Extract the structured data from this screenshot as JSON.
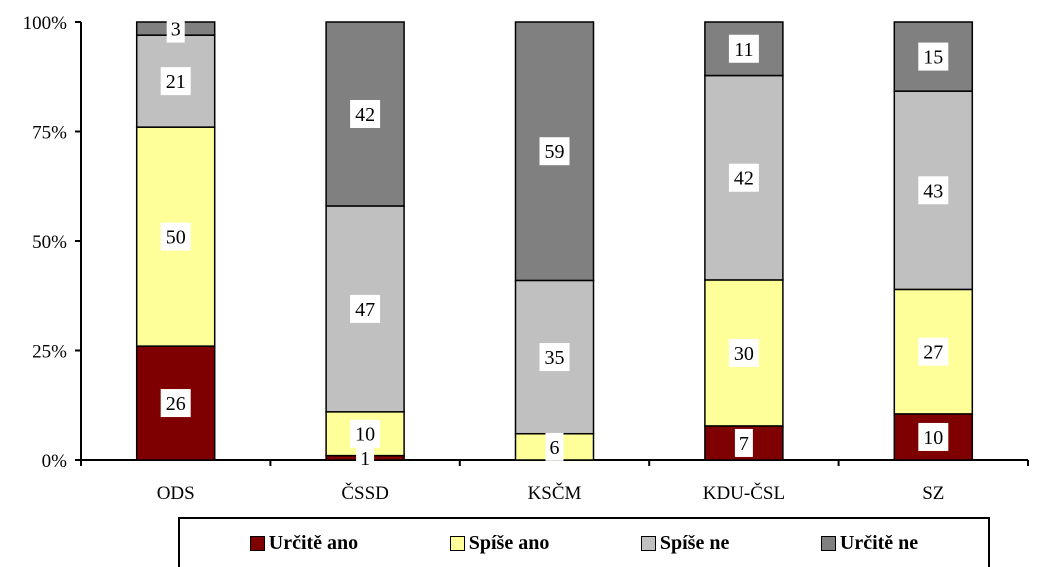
{
  "chart_data": {
    "type": "bar",
    "stacked": true,
    "percent": true,
    "categories": [
      "ODS",
      "ČSSD",
      "KSČM",
      "KDU-ČSL",
      "SZ"
    ],
    "series": [
      {
        "name": "Určitě ano",
        "color": "#7f0000",
        "values": [
          26,
          1,
          0,
          7,
          10
        ]
      },
      {
        "name": "Spíše ano",
        "color": "#ffff99",
        "values": [
          50,
          10,
          6,
          30,
          27
        ]
      },
      {
        "name": "Spíše ne",
        "color": "#c0c0c0",
        "values": [
          21,
          47,
          35,
          42,
          43
        ]
      },
      {
        "name": "Určitě ne",
        "color": "#808080",
        "values": [
          3,
          42,
          59,
          11,
          15
        ]
      }
    ],
    "y_ticks": [
      "0%",
      "25%",
      "50%",
      "75%",
      "100%"
    ],
    "ylim": [
      0,
      100
    ],
    "grid": false,
    "legend_position": "bottom"
  }
}
